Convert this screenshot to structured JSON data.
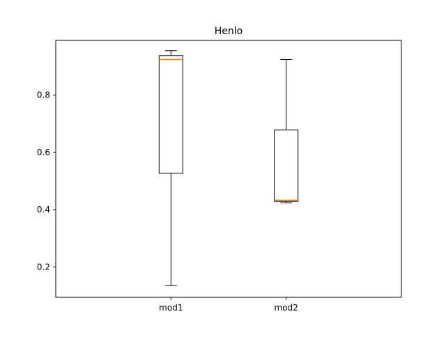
{
  "chart_data": {
    "type": "boxplot",
    "title": "Henlo",
    "xlabel": "",
    "ylabel": "",
    "categories": [
      "mod1",
      "mod2"
    ],
    "ylim": [
      0.094,
      0.991
    ],
    "yticks": [
      0.2,
      0.4,
      0.6,
      0.8
    ],
    "ytick_labels": [
      "0.2",
      "0.4",
      "0.6",
      "0.8"
    ],
    "grid": false,
    "boxes": [
      {
        "label": "mod1",
        "whisker_low": 0.135,
        "q1": 0.527,
        "median": 0.924,
        "q3": 0.938,
        "whisker_high": 0.955
      },
      {
        "label": "mod2",
        "whisker_low": 0.424,
        "q1": 0.429,
        "median": 0.433,
        "q3": 0.678,
        "whisker_high": 0.924
      }
    ],
    "colors": {
      "box": "#000000",
      "median": "#ff7f0e",
      "axes": "#000000",
      "background": "#ffffff"
    }
  }
}
